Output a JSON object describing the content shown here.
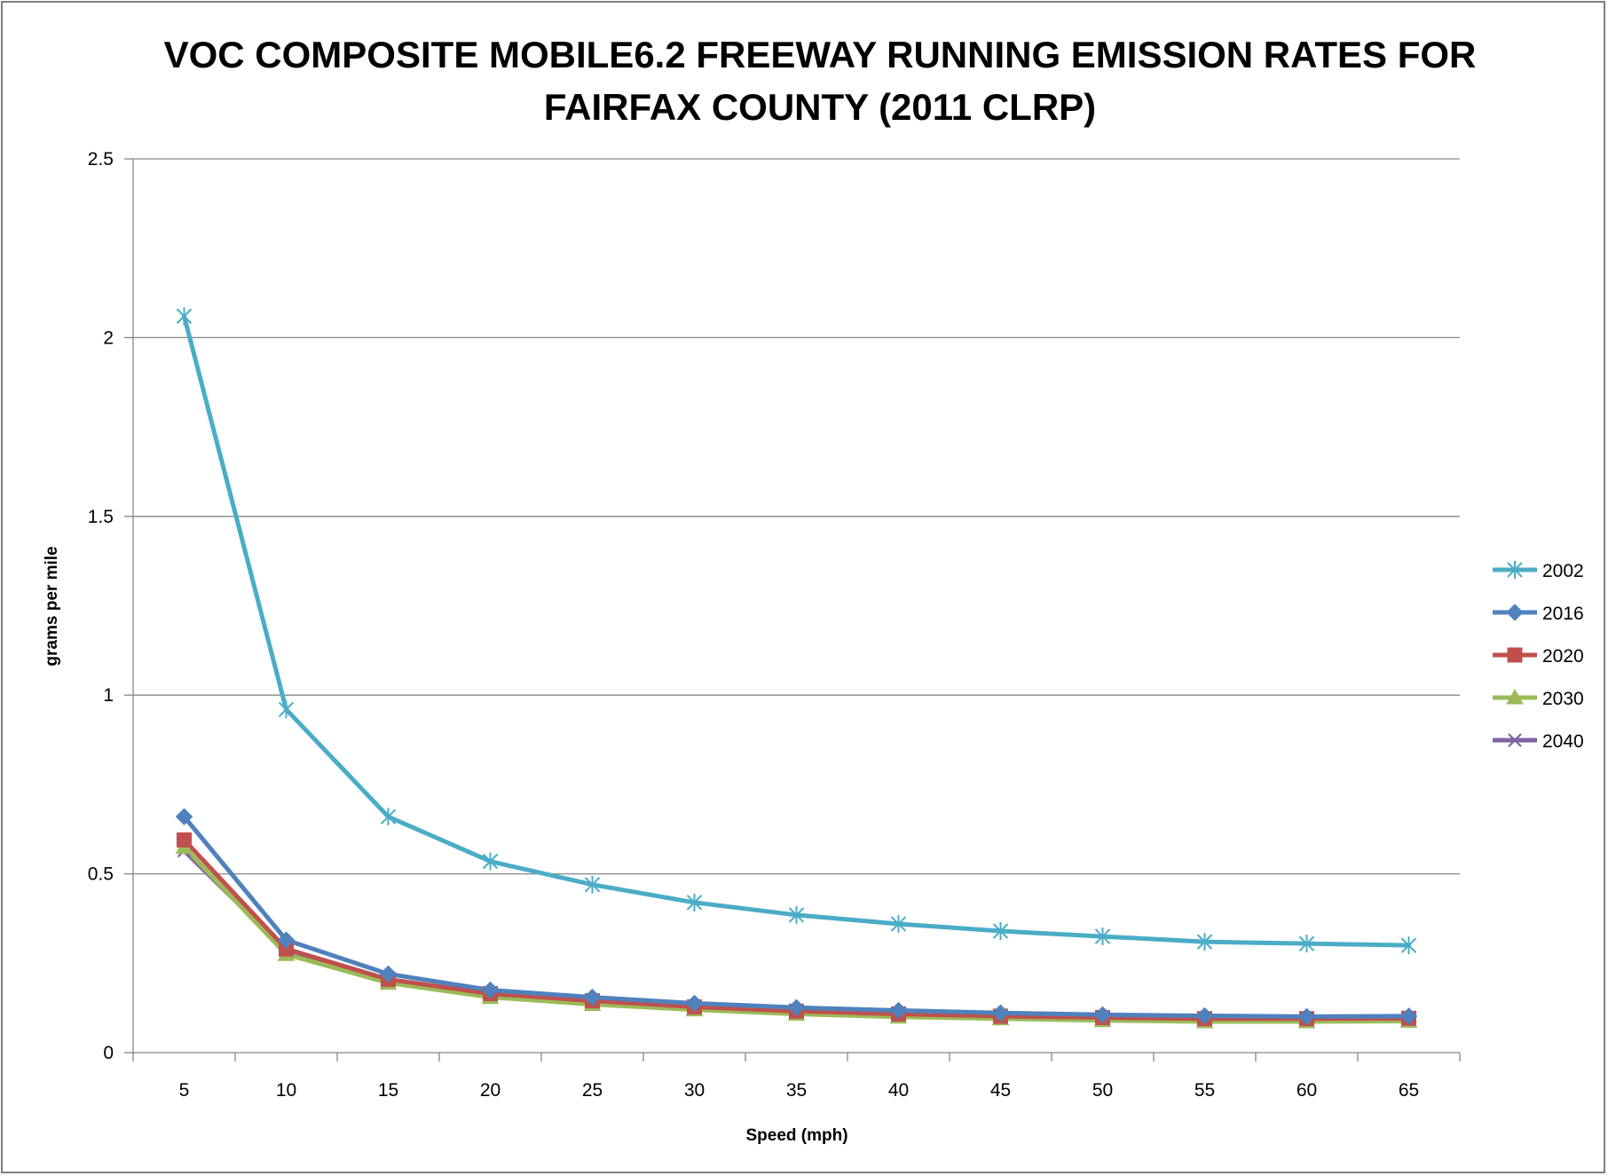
{
  "chart_data": {
    "type": "line",
    "title_lines": [
      "VOC COMPOSITE MOBILE6.2 FREEWAY RUNNING EMISSION RATES FOR",
      "FAIRFAX COUNTY (2011 CLRP)"
    ],
    "xlabel": "Speed (mph)",
    "ylabel": "grams per mile",
    "categories": [
      "5",
      "10",
      "15",
      "20",
      "25",
      "30",
      "35",
      "40",
      "45",
      "50",
      "55",
      "60",
      "65"
    ],
    "ylim": [
      0,
      2.5
    ],
    "yticks": [
      "0",
      "0.5",
      "1",
      "1.5",
      "2",
      "2.5"
    ],
    "grid": true,
    "legend_position": "right",
    "series": [
      {
        "name": "2002",
        "color": "#4bacc6",
        "marker": "star",
        "values": [
          2.06,
          0.96,
          0.66,
          0.535,
          0.47,
          0.42,
          0.385,
          0.36,
          0.34,
          0.325,
          0.31,
          0.305,
          0.3
        ]
      },
      {
        "name": "2016",
        "color": "#4f81bd",
        "marker": "diamond",
        "values": [
          0.66,
          0.315,
          0.22,
          0.175,
          0.155,
          0.138,
          0.126,
          0.118,
          0.111,
          0.106,
          0.103,
          0.101,
          0.102
        ]
      },
      {
        "name": "2020",
        "color": "#c0504d",
        "marker": "square",
        "values": [
          0.595,
          0.29,
          0.205,
          0.165,
          0.145,
          0.128,
          0.116,
          0.108,
          0.102,
          0.098,
          0.095,
          0.095,
          0.096
        ]
      },
      {
        "name": "2030",
        "color": "#9bbb59",
        "marker": "triangle",
        "values": [
          0.575,
          0.275,
          0.195,
          0.155,
          0.135,
          0.12,
          0.108,
          0.1,
          0.095,
          0.09,
          0.087,
          0.087,
          0.088
        ]
      },
      {
        "name": "2040",
        "color": "#8064a2",
        "marker": "x",
        "values": [
          0.565,
          0.285,
          0.2,
          0.16,
          0.14,
          0.123,
          0.11,
          0.102,
          0.097,
          0.093,
          0.09,
          0.09,
          0.091
        ]
      }
    ]
  }
}
